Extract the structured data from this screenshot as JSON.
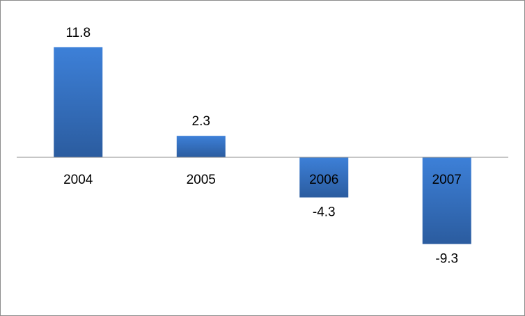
{
  "chart_data": {
    "type": "bar",
    "categories": [
      "2004",
      "2005",
      "2006",
      "2007"
    ],
    "values": [
      11.8,
      2.3,
      -4.3,
      -9.3
    ],
    "color": "#3672c0"
  }
}
